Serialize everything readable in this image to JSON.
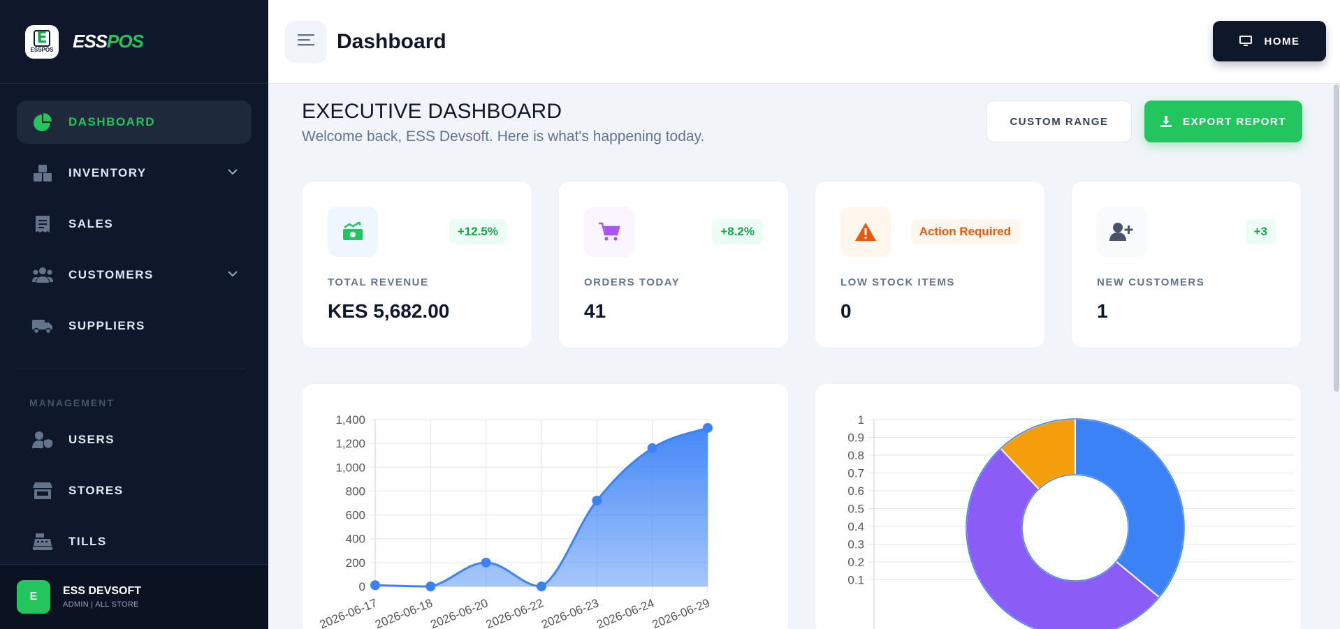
{
  "brand": {
    "name_white": "ESS",
    "name_green": "POS",
    "logo_letter": "E",
    "logo_small": "ESSPOS"
  },
  "sidebar": {
    "items": [
      {
        "label": "DASHBOARD",
        "icon": "pie-chart-icon",
        "active": true
      },
      {
        "label": "INVENTORY",
        "icon": "boxes-icon",
        "has_submenu": true
      },
      {
        "label": "SALES",
        "icon": "receipt-icon"
      },
      {
        "label": "CUSTOMERS",
        "icon": "users-icon",
        "has_submenu": true
      },
      {
        "label": "SUPPLIERS",
        "icon": "truck-icon"
      }
    ],
    "section_label": "MANAGEMENT",
    "management_items": [
      {
        "label": "USERS",
        "icon": "user-shield-icon"
      },
      {
        "label": "STORES",
        "icon": "store-icon"
      },
      {
        "label": "TILLS",
        "icon": "cash-register-icon"
      }
    ],
    "user": {
      "initial": "E",
      "name": "ESS DEVSOFT",
      "role": "ADMIN | ALL STORE"
    }
  },
  "header": {
    "title": "Dashboard",
    "home_label": "HOME"
  },
  "main": {
    "title": "EXECUTIVE DASHBOARD",
    "subtitle": "Welcome back, ESS Devsoft. Here is what's happening today.",
    "custom_range_label": "CUSTOM RANGE",
    "export_label": "EXPORT REPORT"
  },
  "stats": [
    {
      "label": "TOTAL REVENUE",
      "value": "KES 5,682.00",
      "badge": "+12.5%",
      "icon": "money-trend-icon",
      "accent": "#22c55e"
    },
    {
      "label": "ORDERS TODAY",
      "value": "41",
      "badge": "+8.2%",
      "icon": "cart-icon",
      "accent": "#a855f7"
    },
    {
      "label": "LOW STOCK ITEMS",
      "value": "0",
      "badge": "Action Required",
      "icon": "warning-icon",
      "accent": "#ea580c"
    },
    {
      "label": "NEW CUSTOMERS",
      "value": "1",
      "badge": "+3",
      "icon": "user-plus-icon",
      "accent": "#22c55e"
    }
  ],
  "colors": {
    "sidebar_bg": "#0f172a",
    "accent_green": "#22c55e",
    "line_blue": "#3b82f6",
    "purple": "#8b5cf6",
    "amber": "#f59e0b"
  },
  "chart_data": [
    {
      "type": "area",
      "categories": [
        "2026-06-17",
        "2026-06-18",
        "2026-06-20",
        "2026-06-22",
        "2026-06-23",
        "2026-06-24",
        "2026-06-29"
      ],
      "values": [
        10,
        0,
        200,
        0,
        720,
        1160,
        1330
      ],
      "ylim": [
        0,
        1400
      ],
      "yticks": [
        0,
        200,
        400,
        600,
        800,
        1000,
        1200,
        1400
      ],
      "ytick_labels": [
        "0",
        "200",
        "400",
        "600",
        "800",
        "1,000",
        "1,200",
        "1,400"
      ],
      "grid": true
    },
    {
      "type": "pie",
      "donut": true,
      "values": [
        0.36,
        0.52,
        0.12
      ],
      "colors": [
        "#3b82f6",
        "#8b5cf6",
        "#f59e0b"
      ],
      "yticks": [
        "0.1",
        "0.2",
        "0.3",
        "0.4",
        "0.5",
        "0.6",
        "0.7",
        "0.8",
        "0.9",
        "1"
      ],
      "grid": true
    }
  ]
}
